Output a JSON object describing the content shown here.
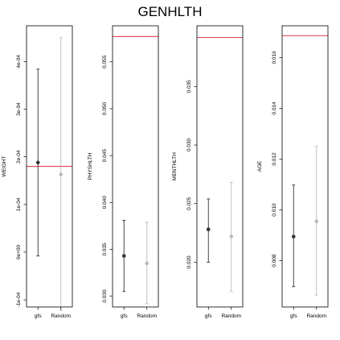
{
  "page_title": "GENHLTH",
  "chart_data": [
    {
      "type": "errorbar",
      "ylabel": "WEIGHT",
      "categories": [
        "gfs",
        "Random"
      ],
      "ylim": [
        -0.000115,
        0.000475
      ],
      "yticks": [
        -0.0001,
        0.0,
        0.0001,
        0.0002,
        0.0003,
        0.0004
      ],
      "ytick_labels": [
        "-1e-04",
        "0e+00",
        "1e-04",
        "2e-04",
        "3e-04",
        "4e-04"
      ],
      "series": [
        {
          "center": 0.000188,
          "lower": -8e-06,
          "upper": 0.000384,
          "color": "#333333"
        },
        {
          "center": 0.000163,
          "lower": -0.000122,
          "upper": 0.00045,
          "color": "#bbbbbb"
        }
      ],
      "reference_line": {
        "value": 0.00018,
        "color": "#e0525a"
      }
    },
    {
      "type": "errorbar",
      "ylabel": "PHYSHLTH",
      "categories": [
        "gfs",
        "Random"
      ],
      "ylim": [
        0.02885,
        0.05885
      ],
      "yticks": [
        0.03,
        0.035,
        0.04,
        0.045,
        0.05,
        0.055
      ],
      "ytick_labels": [
        "0.030",
        "0.035",
        "0.040",
        "0.045",
        "0.050",
        "0.055"
      ],
      "series": [
        {
          "center": 0.0343,
          "lower": 0.0305,
          "upper": 0.0381,
          "color": "#333333"
        },
        {
          "center": 0.0335,
          "lower": 0.0292,
          "upper": 0.0379,
          "color": "#bbbbbb"
        }
      ],
      "reference_line": {
        "value": 0.0577,
        "color": "#e0525a"
      }
    },
    {
      "type": "errorbar",
      "ylabel": "MENTHLTH",
      "categories": [
        "gfs",
        "Random"
      ],
      "ylim": [
        0.01618,
        0.04018
      ],
      "yticks": [
        0.02,
        0.025,
        0.03,
        0.035
      ],
      "ytick_labels": [
        "0.020",
        "0.025",
        "0.030",
        "0.035"
      ],
      "series": [
        {
          "center": 0.0228,
          "lower": 0.02,
          "upper": 0.0254,
          "color": "#333333"
        },
        {
          "center": 0.0222,
          "lower": 0.0175,
          "upper": 0.0268,
          "color": "#bbbbbb"
        }
      ],
      "reference_line": {
        "value": 0.03918,
        "color": "#e0525a"
      }
    },
    {
      "type": "errorbar",
      "ylabel": "AGE",
      "categories": [
        "gfs",
        "Random"
      ],
      "ylim": [
        0.00618,
        0.01725
      ],
      "yticks": [
        0.008,
        0.01,
        0.012,
        0.014,
        0.016
      ],
      "ytick_labels": [
        "0.008",
        "0.010",
        "0.012",
        "0.014",
        "0.016"
      ],
      "series": [
        {
          "center": 0.00895,
          "lower": 0.00698,
          "upper": 0.01098,
          "color": "#333333"
        },
        {
          "center": 0.00955,
          "lower": 0.00665,
          "upper": 0.0125,
          "color": "#bbbbbb"
        }
      ],
      "reference_line": {
        "value": 0.01686,
        "color": "#e0525a"
      }
    }
  ]
}
